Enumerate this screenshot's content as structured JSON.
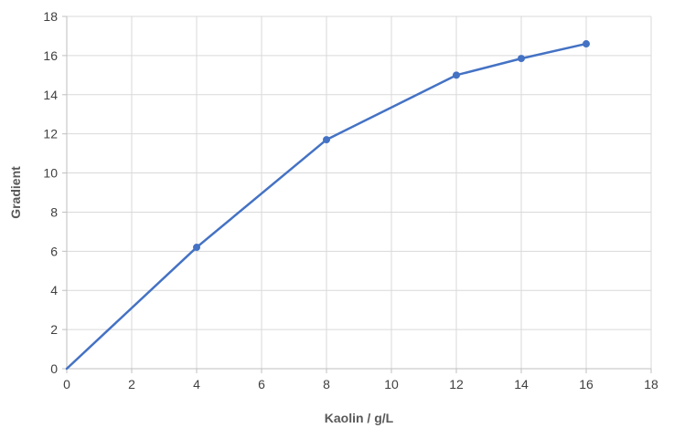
{
  "chart_data": {
    "type": "line",
    "title": "",
    "xlabel": "Kaolin / g/L",
    "ylabel": "Gradient",
    "xlim": [
      0,
      18
    ],
    "ylim": [
      0,
      18
    ],
    "x_ticks": [
      0,
      2,
      4,
      6,
      8,
      10,
      12,
      14,
      16,
      18
    ],
    "y_ticks": [
      0,
      2,
      4,
      6,
      8,
      10,
      12,
      14,
      16,
      18
    ],
    "grid": true,
    "legend": "none",
    "series": [
      {
        "color": "#4472c4",
        "points": [
          {
            "x": 0,
            "y": 0
          },
          {
            "x": 4,
            "y": 6.2
          },
          {
            "x": 8,
            "y": 11.7
          },
          {
            "x": 12,
            "y": 15.0
          },
          {
            "x": 14,
            "y": 15.85
          },
          {
            "x": 16,
            "y": 16.6
          }
        ]
      }
    ]
  }
}
